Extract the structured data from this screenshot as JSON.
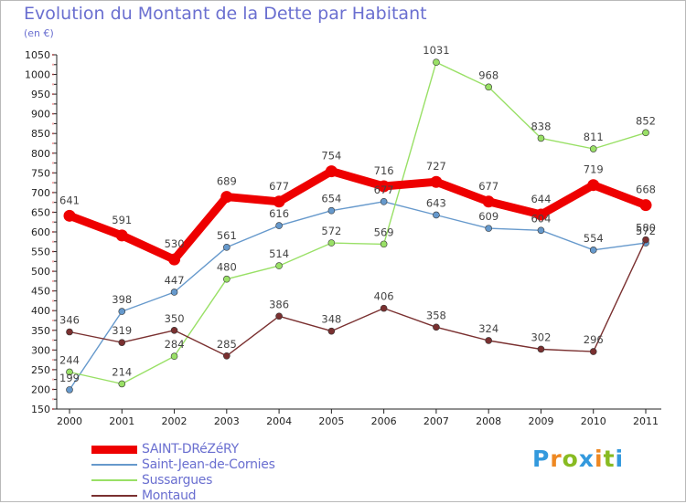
{
  "chart_data": {
    "type": "line",
    "title": "Evolution du Montant de la Dette par Habitant",
    "subtitle": "(en €)",
    "x": [
      "2000",
      "2001",
      "2002",
      "2003",
      "2004",
      "2005",
      "2006",
      "2007",
      "2008",
      "2009",
      "2010",
      "2011"
    ],
    "yticks": [
      150,
      200,
      250,
      300,
      350,
      400,
      450,
      500,
      550,
      600,
      650,
      700,
      750,
      800,
      850,
      900,
      950,
      1000,
      1050
    ],
    "ylim": [
      150,
      1050
    ],
    "grid": false,
    "legend_position": "bottom-left",
    "series": [
      {
        "name": "SAINT-DRéZéRY",
        "color": "#ee0000",
        "emphasis": true,
        "values": [
          641,
          591,
          530,
          689,
          677,
          754,
          716,
          727,
          677,
          644,
          719,
          668
        ]
      },
      {
        "name": "Saint-Jean-de-Cornies",
        "color": "#6699cc",
        "emphasis": false,
        "values": [
          199,
          398,
          447,
          561,
          616,
          654,
          677,
          643,
          609,
          604,
          554,
          572
        ]
      },
      {
        "name": "Sussargues",
        "color": "#99e066",
        "emphasis": false,
        "values": [
          244,
          214,
          284,
          480,
          514,
          572,
          569,
          1031,
          968,
          838,
          811,
          852
        ]
      },
      {
        "name": "Montaud",
        "color": "#7a3030",
        "emphasis": false,
        "values": [
          346,
          319,
          350,
          285,
          386,
          348,
          406,
          358,
          324,
          302,
          296,
          580
        ]
      }
    ]
  },
  "logo": {
    "letters": [
      "P",
      "r",
      "o",
      "x",
      "i",
      "t",
      "i"
    ],
    "colors": [
      "#3399dd",
      "#ee8822",
      "#88bb22",
      "#3399dd",
      "#ee8822",
      "#88bb22",
      "#3399dd"
    ]
  }
}
